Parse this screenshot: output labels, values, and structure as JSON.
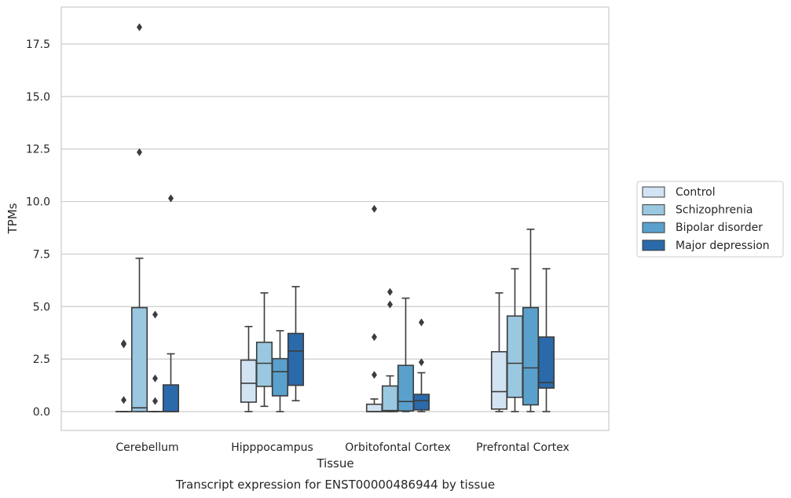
{
  "chart_data": {
    "type": "boxplot",
    "xlabel": "Tissue",
    "ylabel": "TPMs",
    "caption": "Transcript expression for ENST00000486944 by tissue",
    "ylim": [
      -0.85,
      19.2
    ],
    "yticks": [
      0.0,
      2.5,
      5.0,
      7.5,
      10.0,
      12.5,
      15.0,
      17.5
    ],
    "ytick_labels": [
      "0.0",
      "2.5",
      "5.0",
      "7.5",
      "10.0",
      "12.5",
      "15.0",
      "17.5"
    ],
    "grid": true,
    "legend_position": "right",
    "categories": [
      "Cerebellum",
      "Hipppocampus",
      "Orbitofontal Cortex",
      "Prefrontal Cortex"
    ],
    "series": [
      {
        "name": "Control",
        "color": "#d2e3f3",
        "boxes": [
          {
            "whislo": 0.0,
            "q1": 0.0,
            "med": 0.0,
            "q3": 0.0,
            "whishi": 0.0,
            "fliers": [
              0.55,
              3.2,
              3.25
            ]
          },
          {
            "whislo": 0.0,
            "q1": 0.45,
            "med": 1.35,
            "q3": 2.45,
            "whishi": 4.05,
            "fliers": []
          },
          {
            "whislo": 0.0,
            "q1": 0.0,
            "med": 0.0,
            "q3": 0.35,
            "whishi": 0.6,
            "fliers": [
              1.75,
              3.55,
              9.65
            ]
          },
          {
            "whislo": 0.0,
            "q1": 0.12,
            "med": 0.95,
            "q3": 2.85,
            "whishi": 5.65,
            "fliers": []
          }
        ]
      },
      {
        "name": "Schizophrenia",
        "color": "#9ac8e0",
        "boxes": [
          {
            "whislo": 0.0,
            "q1": 0.0,
            "med": 0.18,
            "q3": 4.95,
            "whishi": 7.3,
            "fliers": [
              12.35,
              18.3
            ]
          },
          {
            "whislo": 0.25,
            "q1": 1.2,
            "med": 2.3,
            "q3": 3.3,
            "whishi": 5.65,
            "fliers": []
          },
          {
            "whislo": 0.0,
            "q1": 0.0,
            "med": 0.05,
            "q3": 1.22,
            "whishi": 1.7,
            "fliers": [
              5.1,
              5.7
            ]
          },
          {
            "whislo": 0.0,
            "q1": 0.68,
            "med": 2.3,
            "q3": 4.55,
            "whishi": 6.8,
            "fliers": []
          }
        ]
      },
      {
        "name": "Bipolar disorder",
        "color": "#5aa0cd",
        "boxes": [
          {
            "whislo": 0.0,
            "q1": 0.0,
            "med": 0.0,
            "q3": 0.0,
            "whishi": 0.0,
            "fliers": [
              0.5,
              1.58,
              4.62
            ]
          },
          {
            "whislo": 0.0,
            "q1": 0.75,
            "med": 1.9,
            "q3": 2.52,
            "whishi": 3.85,
            "fliers": []
          },
          {
            "whislo": 0.0,
            "q1": 0.03,
            "med": 0.48,
            "q3": 2.2,
            "whishi": 5.4,
            "fliers": []
          },
          {
            "whislo": 0.0,
            "q1": 0.32,
            "med": 2.08,
            "q3": 4.95,
            "whishi": 8.68,
            "fliers": []
          }
        ]
      },
      {
        "name": "Major depression",
        "color": "#2a6aaa",
        "boxes": [
          {
            "whislo": 0.0,
            "q1": 0.0,
            "med": 0.0,
            "q3": 1.27,
            "whishi": 2.75,
            "fliers": [
              10.15
            ]
          },
          {
            "whislo": 0.52,
            "q1": 1.25,
            "med": 2.88,
            "q3": 3.72,
            "whishi": 5.95,
            "fliers": []
          },
          {
            "whislo": 0.0,
            "q1": 0.08,
            "med": 0.52,
            "q3": 0.82,
            "whishi": 1.85,
            "fliers": [
              2.35,
              4.25
            ]
          },
          {
            "whislo": 0.0,
            "q1": 1.12,
            "med": 1.38,
            "q3": 3.55,
            "whishi": 6.8,
            "fliers": []
          }
        ]
      }
    ]
  }
}
